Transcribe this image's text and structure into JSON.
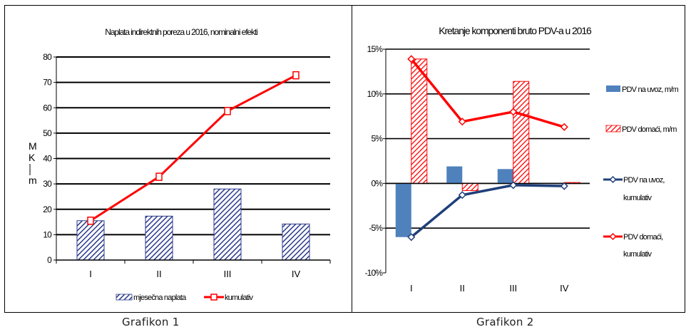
{
  "captions": [
    "Grafikon 1",
    "Grafikon 2"
  ],
  "charts": [
    {
      "title": "Naplata indirektnih poreza u 2016, nominalni efekti",
      "ylabel": "M\nK\nm",
      "categories": [
        "I",
        "II",
        "III",
        "IV"
      ],
      "yticks": [
        "0",
        "10",
        "20",
        "30",
        "40",
        "50",
        "60",
        "70",
        "80"
      ],
      "legend": [
        "mjesečna naplata",
        "kumulativ"
      ]
    },
    {
      "title": "Kretanje komponenti bruto PDV-a u 2016",
      "categories": [
        "I",
        "II",
        "III",
        "IV"
      ],
      "yticks": [
        "-10%",
        "-5%",
        "0%",
        "5%",
        "10%",
        "15%"
      ],
      "legend": [
        "PDV na uvoz, m/m",
        "PDV domaći, m/m",
        "PDV na uvoz, kumulativ",
        "PDV domaći, kumulativ"
      ]
    }
  ],
  "chart_data": [
    {
      "type": "bar",
      "title": "Naplata indirektnih poreza u 2016, nominalni efekti",
      "ylabel": "MKm",
      "categories": [
        "I",
        "II",
        "III",
        "IV"
      ],
      "ylim": [
        0,
        80
      ],
      "grid": true,
      "legend_position": "bottom",
      "series": [
        {
          "name": "mjesečna naplata",
          "type": "bar",
          "values": [
            15.5,
            17.3,
            28,
            14.2
          ],
          "color": "#2b3a8c"
        },
        {
          "name": "kumulativ",
          "type": "line",
          "values": [
            15.5,
            32.8,
            58.7,
            72.8
          ],
          "color": "#ff0000"
        }
      ]
    },
    {
      "type": "bar",
      "title": "Kretanje komponenti bruto PDV-a u 2016",
      "categories": [
        "I",
        "II",
        "III",
        "IV"
      ],
      "ylim": [
        -10,
        15
      ],
      "unit": "%",
      "grid": true,
      "legend_position": "right",
      "series": [
        {
          "name": "PDV na uvoz, m/m",
          "type": "bar",
          "values": [
            -6.0,
            1.9,
            1.6,
            0
          ],
          "color": "#4f81bd"
        },
        {
          "name": "PDV domaći, m/m",
          "type": "bar",
          "values": [
            13.9,
            -0.8,
            11.4,
            0.1
          ],
          "color": "#ff0000"
        },
        {
          "name": "PDV na uvoz, kumulativ",
          "type": "line",
          "values": [
            -6.0,
            -1.3,
            -0.2,
            -0.3
          ],
          "color": "#1f3f7a"
        },
        {
          "name": "PDV domaći, kumulativ",
          "type": "line",
          "values": [
            13.9,
            6.9,
            8.0,
            6.3
          ],
          "color": "#ff0000"
        }
      ]
    }
  ]
}
